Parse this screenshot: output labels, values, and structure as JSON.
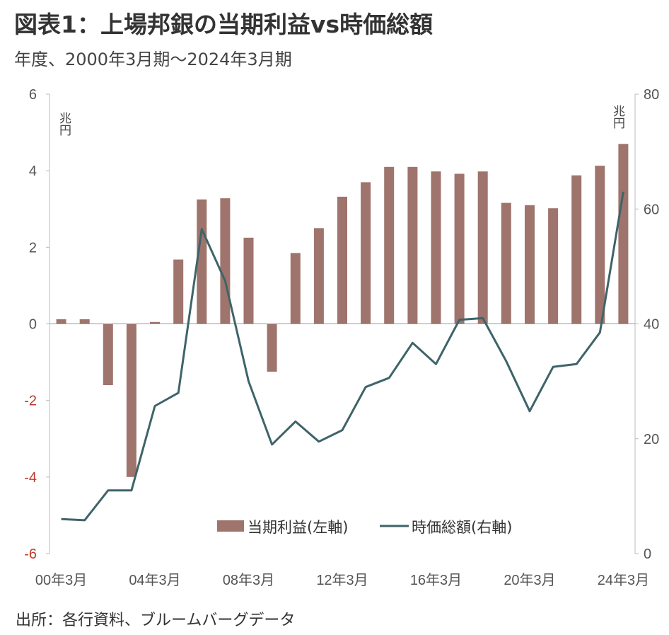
{
  "header": {
    "title": "図表1：上場邦銀の当期利益vs時価総額",
    "subtitle": "年度、2000年3月期～2024年3月期"
  },
  "footer": {
    "source": "出所：各行資料、ブルームバーグデータ"
  },
  "colors": {
    "bar": "#9e746c",
    "line": "#3e6469",
    "negative_tick": "#c0392b"
  },
  "chart_data": {
    "type": "bar+line",
    "categories": [
      "2000",
      "2001",
      "2002",
      "2003",
      "2004",
      "2005",
      "2006",
      "2007",
      "2008",
      "2009",
      "2010",
      "2011",
      "2012",
      "2013",
      "2014",
      "2015",
      "2016",
      "2017",
      "2018",
      "2019",
      "2020",
      "2021",
      "2022",
      "2023",
      "2024"
    ],
    "x_tick_labels": [
      "00年3月",
      "04年3月",
      "08年3月",
      "12年3月",
      "16年3月",
      "20年3月",
      "24年3月"
    ],
    "series": [
      {
        "name": "当期利益(左軸)",
        "type": "bar",
        "axis": "left",
        "values": [
          0.12,
          0.12,
          -1.6,
          -4.0,
          0.05,
          1.68,
          3.25,
          3.28,
          2.25,
          -1.25,
          1.85,
          2.5,
          3.32,
          3.7,
          4.1,
          4.1,
          3.98,
          3.92,
          3.98,
          3.16,
          3.1,
          3.02,
          3.88,
          4.13,
          4.7
        ]
      },
      {
        "name": "時価総額(右軸)",
        "type": "line",
        "axis": "right",
        "values": [
          6.0,
          5.8,
          11.0,
          11.0,
          25.7,
          28.0,
          56.5,
          47.5,
          30.0,
          19.0,
          23.0,
          19.5,
          21.5,
          29.0,
          30.6,
          36.7,
          33.0,
          40.7,
          41.0,
          33.5,
          24.8,
          32.5,
          33.0,
          38.5,
          63.0
        ]
      }
    ],
    "y_left": {
      "unit": "兆円",
      "min": -6,
      "max": 6,
      "ticks": [
        "6",
        "4",
        "2",
        "0",
        "-2",
        "-4",
        "-6"
      ]
    },
    "y_right": {
      "unit": "兆円",
      "min": 0,
      "max": 80,
      "ticks": [
        "80",
        "60",
        "40",
        "20",
        "0"
      ]
    },
    "legend": {
      "placement": "bottom-center"
    }
  }
}
